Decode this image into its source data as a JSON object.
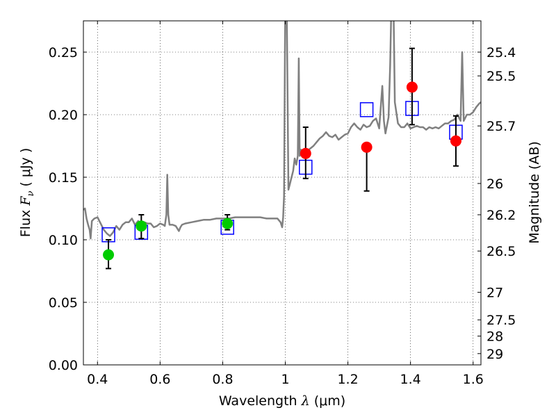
{
  "chart_data": {
    "type": "scatter",
    "xlabel": {
      "prefix": "Wavelength  ",
      "symbol": "λ",
      "unit": " (μm)"
    },
    "ylabel": {
      "prefix": "Flux  ",
      "symbol": "F",
      "subscript": "ν",
      "unit": "  ( μJy )"
    },
    "y2label": "Magnitude (AB)",
    "xlim": [
      0.355,
      1.625
    ],
    "ylim": [
      0.0,
      0.275
    ],
    "x_ticks": [
      {
        "value": 0.4,
        "label": "0.4"
      },
      {
        "value": 0.6,
        "label": "0.6"
      },
      {
        "value": 0.8,
        "label": "0.8"
      },
      {
        "value": 1.0,
        "label": "1"
      },
      {
        "value": 1.2,
        "label": "1.2"
      },
      {
        "value": 1.4,
        "label": "1.4"
      },
      {
        "value": 1.6,
        "label": "1.6"
      }
    ],
    "y_ticks": [
      {
        "value": 0.0,
        "label": "0.00"
      },
      {
        "value": 0.05,
        "label": "0.05"
      },
      {
        "value": 0.1,
        "label": "0.10"
      },
      {
        "value": 0.15,
        "label": "0.15"
      },
      {
        "value": 0.2,
        "label": "0.20"
      },
      {
        "value": 0.25,
        "label": "0.25"
      }
    ],
    "y2_ticks": [
      {
        "label": "25.4",
        "flux": 0.25
      },
      {
        "label": "25.5",
        "flux": 0.231
      },
      {
        "label": "25.7",
        "flux": 0.191
      },
      {
        "label": "26",
        "flux": 0.145
      },
      {
        "label": "26.2",
        "flux": 0.12
      },
      {
        "label": "26.5",
        "flux": 0.091
      },
      {
        "label": "27",
        "flux": 0.058
      },
      {
        "label": "27.5",
        "flux": 0.036
      },
      {
        "label": "28",
        "flux": 0.023
      },
      {
        "label": "29",
        "flux": 0.009
      }
    ],
    "grid": true,
    "grid_style": "dotted",
    "series": [
      {
        "kind": "line",
        "color": "#808080",
        "points": [
          [
            0.355,
            0.124
          ],
          [
            0.36,
            0.125
          ],
          [
            0.365,
            0.117
          ],
          [
            0.37,
            0.112
          ],
          [
            0.375,
            0.108
          ],
          [
            0.378,
            0.101
          ],
          [
            0.382,
            0.115
          ],
          [
            0.39,
            0.117
          ],
          [
            0.4,
            0.118
          ],
          [
            0.41,
            0.113
          ],
          [
            0.42,
            0.108
          ],
          [
            0.43,
            0.105
          ],
          [
            0.44,
            0.103
          ],
          [
            0.45,
            0.106
          ],
          [
            0.46,
            0.111
          ],
          [
            0.47,
            0.108
          ],
          [
            0.48,
            0.112
          ],
          [
            0.49,
            0.114
          ],
          [
            0.5,
            0.114
          ],
          [
            0.51,
            0.117
          ],
          [
            0.52,
            0.112
          ],
          [
            0.53,
            0.115
          ],
          [
            0.54,
            0.112
          ],
          [
            0.55,
            0.114
          ],
          [
            0.56,
            0.113
          ],
          [
            0.57,
            0.113
          ],
          [
            0.58,
            0.11
          ],
          [
            0.59,
            0.111
          ],
          [
            0.6,
            0.113
          ],
          [
            0.61,
            0.112
          ],
          [
            0.615,
            0.111
          ],
          [
            0.62,
            0.12
          ],
          [
            0.623,
            0.152
          ],
          [
            0.626,
            0.12
          ],
          [
            0.63,
            0.112
          ],
          [
            0.64,
            0.112
          ],
          [
            0.65,
            0.111
          ],
          [
            0.66,
            0.107
          ],
          [
            0.665,
            0.11
          ],
          [
            0.67,
            0.112
          ],
          [
            0.68,
            0.113
          ],
          [
            0.7,
            0.114
          ],
          [
            0.72,
            0.115
          ],
          [
            0.74,
            0.116
          ],
          [
            0.76,
            0.116
          ],
          [
            0.78,
            0.117
          ],
          [
            0.8,
            0.117
          ],
          [
            0.82,
            0.117
          ],
          [
            0.84,
            0.118
          ],
          [
            0.86,
            0.118
          ],
          [
            0.88,
            0.118
          ],
          [
            0.9,
            0.118
          ],
          [
            0.92,
            0.118
          ],
          [
            0.94,
            0.117
          ],
          [
            0.96,
            0.117
          ],
          [
            0.975,
            0.117
          ],
          [
            0.985,
            0.114
          ],
          [
            0.99,
            0.11
          ],
          [
            0.993,
            0.118
          ],
          [
            0.996,
            0.135
          ],
          [
            0.999,
            0.26
          ],
          [
            1.001,
            0.33
          ],
          [
            1.004,
            0.3
          ],
          [
            1.007,
            0.22
          ],
          [
            1.01,
            0.14
          ],
          [
            1.015,
            0.145
          ],
          [
            1.02,
            0.15
          ],
          [
            1.025,
            0.155
          ],
          [
            1.03,
            0.165
          ],
          [
            1.035,
            0.16
          ],
          [
            1.04,
            0.167
          ],
          [
            1.043,
            0.245
          ],
          [
            1.046,
            0.167
          ],
          [
            1.05,
            0.172
          ],
          [
            1.06,
            0.17
          ],
          [
            1.07,
            0.171
          ],
          [
            1.08,
            0.173
          ],
          [
            1.09,
            0.175
          ],
          [
            1.1,
            0.178
          ],
          [
            1.11,
            0.181
          ],
          [
            1.12,
            0.183
          ],
          [
            1.13,
            0.186
          ],
          [
            1.14,
            0.183
          ],
          [
            1.15,
            0.182
          ],
          [
            1.16,
            0.184
          ],
          [
            1.17,
            0.18
          ],
          [
            1.18,
            0.182
          ],
          [
            1.19,
            0.184
          ],
          [
            1.2,
            0.185
          ],
          [
            1.21,
            0.19
          ],
          [
            1.22,
            0.193
          ],
          [
            1.23,
            0.19
          ],
          [
            1.24,
            0.188
          ],
          [
            1.25,
            0.192
          ],
          [
            1.26,
            0.19
          ],
          [
            1.27,
            0.191
          ],
          [
            1.28,
            0.195
          ],
          [
            1.29,
            0.197
          ],
          [
            1.3,
            0.189
          ],
          [
            1.31,
            0.223
          ],
          [
            1.315,
            0.195
          ],
          [
            1.32,
            0.185
          ],
          [
            1.33,
            0.198
          ],
          [
            1.335,
            0.24
          ],
          [
            1.34,
            0.3
          ],
          [
            1.345,
            0.3
          ],
          [
            1.35,
            0.21
          ],
          [
            1.36,
            0.193
          ],
          [
            1.37,
            0.19
          ],
          [
            1.38,
            0.19
          ],
          [
            1.39,
            0.193
          ],
          [
            1.4,
            0.189
          ],
          [
            1.41,
            0.19
          ],
          [
            1.42,
            0.191
          ],
          [
            1.43,
            0.19
          ],
          [
            1.44,
            0.19
          ],
          [
            1.45,
            0.188
          ],
          [
            1.46,
            0.19
          ],
          [
            1.47,
            0.189
          ],
          [
            1.48,
            0.19
          ],
          [
            1.49,
            0.189
          ],
          [
            1.5,
            0.191
          ],
          [
            1.51,
            0.193
          ],
          [
            1.52,
            0.193
          ],
          [
            1.53,
            0.195
          ],
          [
            1.54,
            0.196
          ],
          [
            1.55,
            0.2
          ],
          [
            1.56,
            0.195
          ],
          [
            1.565,
            0.25
          ],
          [
            1.57,
            0.195
          ],
          [
            1.58,
            0.2
          ],
          [
            1.59,
            0.2
          ],
          [
            1.6,
            0.202
          ],
          [
            1.61,
            0.206
          ],
          [
            1.62,
            0.209
          ],
          [
            1.625,
            0.21
          ]
        ]
      },
      {
        "kind": "open-square",
        "color": "#0000ff",
        "points": [
          [
            0.435,
            0.104
          ],
          [
            0.54,
            0.106
          ],
          [
            0.815,
            0.11
          ],
          [
            1.065,
            0.158
          ],
          [
            1.26,
            0.204
          ],
          [
            1.405,
            0.205
          ],
          [
            1.545,
            0.186
          ]
        ]
      },
      {
        "kind": "filled-circle",
        "color": "#00cc00",
        "points": [
          {
            "x": 0.435,
            "y": 0.088,
            "lo": 0.077,
            "hi": 0.1
          },
          {
            "x": 0.54,
            "y": 0.111,
            "lo": 0.101,
            "hi": 0.12
          },
          {
            "x": 0.815,
            "y": 0.113,
            "lo": 0.108,
            "hi": 0.12
          }
        ]
      },
      {
        "kind": "filled-circle",
        "color": "#ff0000",
        "points": [
          {
            "x": 1.065,
            "y": 0.169,
            "lo": 0.149,
            "hi": 0.19
          },
          {
            "x": 1.26,
            "y": 0.174,
            "lo": 0.139,
            "hi": 0.174
          },
          {
            "x": 1.405,
            "y": 0.222,
            "lo": 0.192,
            "hi": 0.253
          },
          {
            "x": 1.545,
            "y": 0.179,
            "lo": 0.159,
            "hi": 0.199
          }
        ]
      }
    ]
  }
}
